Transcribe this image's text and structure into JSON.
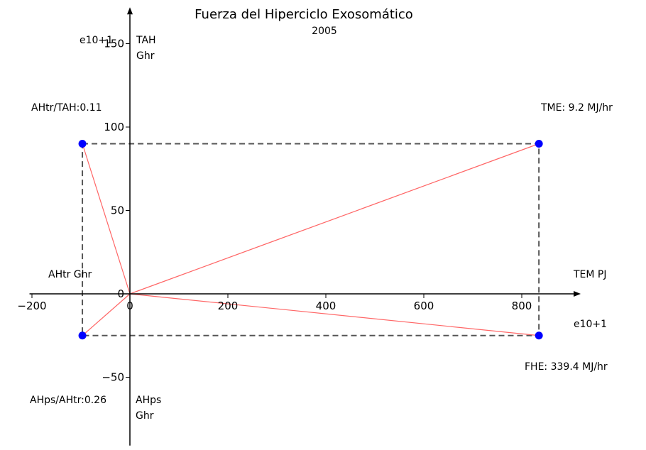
{
  "chart_data": {
    "type": "scatter",
    "title": "Fuerza del Hiperciclo Exosomático",
    "subtitle": "2005",
    "x_axis": {
      "ticks": [
        -200,
        0,
        200,
        400,
        600,
        800
      ],
      "tick_labels": [
        "−200",
        "0",
        "200",
        "400",
        "600",
        "800"
      ],
      "range": [
        -205,
        845
      ]
    },
    "y_axis": {
      "ticks": [
        150,
        100,
        50,
        0,
        -50
      ],
      "tick_labels": [
        "150",
        "100",
        "50",
        "0",
        "−50"
      ],
      "range": [
        -85,
        165
      ]
    },
    "points": [
      {
        "x": -97,
        "y": 90
      },
      {
        "x": 835,
        "y": 90
      },
      {
        "x": -97,
        "y": -25
      },
      {
        "x": 835,
        "y": -25
      }
    ],
    "rectangle": {
      "x": [
        -97,
        835
      ],
      "y": [
        -25,
        90
      ]
    },
    "rays_from_origin": [
      {
        "x": -97,
        "y": 90
      },
      {
        "x": 835,
        "y": 90
      },
      {
        "x": -97,
        "y": -25
      },
      {
        "x": 835,
        "y": -25
      }
    ],
    "point_color": "#0000ff",
    "ray_color": "#ff6666",
    "rect_color": "#555555",
    "annotations": {
      "exp_top": "e10+1",
      "tah_1": "TAH",
      "tah_2": "Ghr",
      "ahtr_tah": "AHtr/TAH:0.11",
      "tme": "TME: 9.2 MJ/hr",
      "ahtr_ghr": "AHtr Ghr",
      "tem_pj": "TEM PJ",
      "exp_right": "e10+1",
      "fhe": "FHE: 339.4 MJ/hr",
      "ahps_ahtr": "AHps/AHtr:0.26",
      "ahps_1": "AHps",
      "ahps_2": "Ghr"
    }
  }
}
